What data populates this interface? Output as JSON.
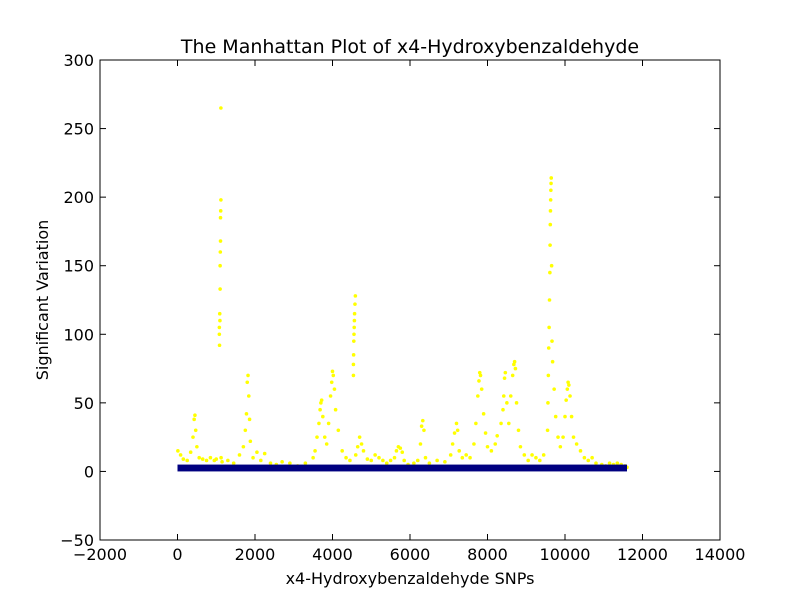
{
  "chart_data": {
    "type": "scatter",
    "title": "The Manhattan Plot of x4-Hydroxybenzaldehyde",
    "xlabel": "x4-Hydroxybenzaldehyde SNPs",
    "ylabel": "Significant Variation",
    "xlim": [
      -2000,
      14000
    ],
    "ylim": [
      -50,
      300
    ],
    "xticks": [
      -2000,
      0,
      2000,
      4000,
      6000,
      8000,
      10000,
      12000,
      14000
    ],
    "yticks": [
      -50,
      0,
      50,
      100,
      150,
      200,
      250,
      300
    ],
    "xtick_labels": [
      "−2000",
      "0",
      "2000",
      "4000",
      "6000",
      "8000",
      "10000",
      "12000",
      "14000"
    ],
    "ytick_labels": [
      "−50",
      "0",
      "50",
      "100",
      "150",
      "200",
      "250",
      "300"
    ],
    "grid": false,
    "legend": "none",
    "series": [
      {
        "color": "#ffff00",
        "points": [
          [
            10,
            15
          ],
          [
            80,
            12
          ],
          [
            150,
            9
          ],
          [
            250,
            8
          ],
          [
            340,
            14
          ],
          [
            400,
            25
          ],
          [
            430,
            38
          ],
          [
            450,
            41
          ],
          [
            470,
            30
          ],
          [
            500,
            18
          ],
          [
            560,
            10
          ],
          [
            650,
            9
          ],
          [
            750,
            8
          ],
          [
            850,
            10
          ],
          [
            950,
            8
          ],
          [
            1000,
            9
          ],
          [
            1080,
            100
          ],
          [
            1080,
            105
          ],
          [
            1085,
            92
          ],
          [
            1090,
            115
          ],
          [
            1095,
            110
          ],
          [
            1100,
            133
          ],
          [
            1100,
            150
          ],
          [
            1105,
            160
          ],
          [
            1110,
            168
          ],
          [
            1110,
            185
          ],
          [
            1115,
            190
          ],
          [
            1120,
            198
          ],
          [
            1120,
            265
          ],
          [
            1125,
            10
          ],
          [
            1150,
            7
          ],
          [
            1300,
            8
          ],
          [
            1450,
            6
          ],
          [
            1600,
            12
          ],
          [
            1700,
            18
          ],
          [
            1750,
            30
          ],
          [
            1780,
            42
          ],
          [
            1800,
            65
          ],
          [
            1820,
            70
          ],
          [
            1840,
            55
          ],
          [
            1860,
            38
          ],
          [
            1880,
            22
          ],
          [
            1950,
            10
          ],
          [
            2050,
            14
          ],
          [
            2150,
            8
          ],
          [
            2250,
            13
          ],
          [
            2400,
            6
          ],
          [
            2550,
            5
          ],
          [
            2700,
            7
          ],
          [
            2900,
            6
          ],
          [
            3100,
            4
          ],
          [
            3300,
            6
          ],
          [
            3500,
            10
          ],
          [
            3550,
            15
          ],
          [
            3600,
            25
          ],
          [
            3650,
            35
          ],
          [
            3680,
            45
          ],
          [
            3700,
            50
          ],
          [
            3720,
            52
          ],
          [
            3750,
            40
          ],
          [
            3800,
            25
          ],
          [
            3850,
            20
          ],
          [
            3900,
            35
          ],
          [
            3950,
            55
          ],
          [
            3980,
            65
          ],
          [
            4000,
            73
          ],
          [
            4020,
            70
          ],
          [
            4050,
            60
          ],
          [
            4080,
            45
          ],
          [
            4150,
            30
          ],
          [
            4250,
            15
          ],
          [
            4350,
            10
          ],
          [
            4450,
            8
          ],
          [
            4540,
            70
          ],
          [
            4540,
            78
          ],
          [
            4545,
            85
          ],
          [
            4550,
            95
          ],
          [
            4555,
            100
          ],
          [
            4560,
            105
          ],
          [
            4565,
            110
          ],
          [
            4570,
            115
          ],
          [
            4580,
            122
          ],
          [
            4590,
            128
          ],
          [
            4600,
            12
          ],
          [
            4650,
            18
          ],
          [
            4700,
            25
          ],
          [
            4750,
            20
          ],
          [
            4800,
            15
          ],
          [
            4900,
            9
          ],
          [
            5000,
            8
          ],
          [
            5100,
            12
          ],
          [
            5200,
            10
          ],
          [
            5300,
            8
          ],
          [
            5400,
            6
          ],
          [
            5500,
            8
          ],
          [
            5600,
            10
          ],
          [
            5650,
            15
          ],
          [
            5700,
            18
          ],
          [
            5750,
            17
          ],
          [
            5800,
            14
          ],
          [
            5850,
            8
          ],
          [
            5950,
            5
          ],
          [
            6100,
            6
          ],
          [
            6200,
            8
          ],
          [
            6270,
            20
          ],
          [
            6300,
            33
          ],
          [
            6330,
            37
          ],
          [
            6360,
            30
          ],
          [
            6400,
            10
          ],
          [
            6500,
            6
          ],
          [
            6700,
            8
          ],
          [
            6900,
            7
          ],
          [
            7050,
            12
          ],
          [
            7100,
            20
          ],
          [
            7150,
            28
          ],
          [
            7200,
            35
          ],
          [
            7230,
            30
          ],
          [
            7270,
            15
          ],
          [
            7350,
            10
          ],
          [
            7450,
            12
          ],
          [
            7550,
            10
          ],
          [
            7650,
            20
          ],
          [
            7700,
            35
          ],
          [
            7750,
            55
          ],
          [
            7780,
            66
          ],
          [
            7800,
            72
          ],
          [
            7820,
            70
          ],
          [
            7850,
            60
          ],
          [
            7900,
            42
          ],
          [
            7950,
            28
          ],
          [
            8000,
            18
          ],
          [
            8100,
            15
          ],
          [
            8200,
            20
          ],
          [
            8250,
            26
          ],
          [
            8350,
            35
          ],
          [
            8400,
            45
          ],
          [
            8420,
            55
          ],
          [
            8440,
            68
          ],
          [
            8460,
            72
          ],
          [
            8500,
            50
          ],
          [
            8550,
            35
          ],
          [
            8600,
            55
          ],
          [
            8650,
            70
          ],
          [
            8680,
            78
          ],
          [
            8700,
            80
          ],
          [
            8720,
            75
          ],
          [
            8750,
            50
          ],
          [
            8800,
            30
          ],
          [
            8850,
            18
          ],
          [
            8950,
            12
          ],
          [
            9050,
            8
          ],
          [
            9150,
            12
          ],
          [
            9250,
            10
          ],
          [
            9350,
            8
          ],
          [
            9450,
            12
          ],
          [
            9550,
            30
          ],
          [
            9560,
            50
          ],
          [
            9570,
            70
          ],
          [
            9580,
            90
          ],
          [
            9590,
            105
          ],
          [
            9600,
            125
          ],
          [
            9610,
            145
          ],
          [
            9615,
            165
          ],
          [
            9620,
            180
          ],
          [
            9625,
            190
          ],
          [
            9630,
            198
          ],
          [
            9635,
            205
          ],
          [
            9640,
            210
          ],
          [
            9645,
            214
          ],
          [
            9655,
            150
          ],
          [
            9665,
            95
          ],
          [
            9680,
            80
          ],
          [
            9720,
            60
          ],
          [
            9760,
            40
          ],
          [
            9820,
            25
          ],
          [
            9880,
            18
          ],
          [
            9950,
            25
          ],
          [
            10000,
            40
          ],
          [
            10030,
            52
          ],
          [
            10060,
            60
          ],
          [
            10080,
            65
          ],
          [
            10100,
            63
          ],
          [
            10130,
            55
          ],
          [
            10170,
            40
          ],
          [
            10220,
            25
          ],
          [
            10300,
            20
          ],
          [
            10400,
            15
          ],
          [
            10500,
            10
          ],
          [
            10600,
            8
          ],
          [
            10700,
            10
          ],
          [
            10800,
            6
          ],
          [
            10950,
            5
          ],
          [
            11050,
            4
          ],
          [
            11150,
            6
          ],
          [
            11250,
            5
          ],
          [
            11350,
            6
          ],
          [
            11450,
            5
          ],
          [
            11550,
            4
          ],
          [
            11600,
            3
          ]
        ]
      },
      {
        "color": "#000080",
        "band": [
          0,
          11600
        ],
        "ymax": 5,
        "points": []
      }
    ]
  }
}
